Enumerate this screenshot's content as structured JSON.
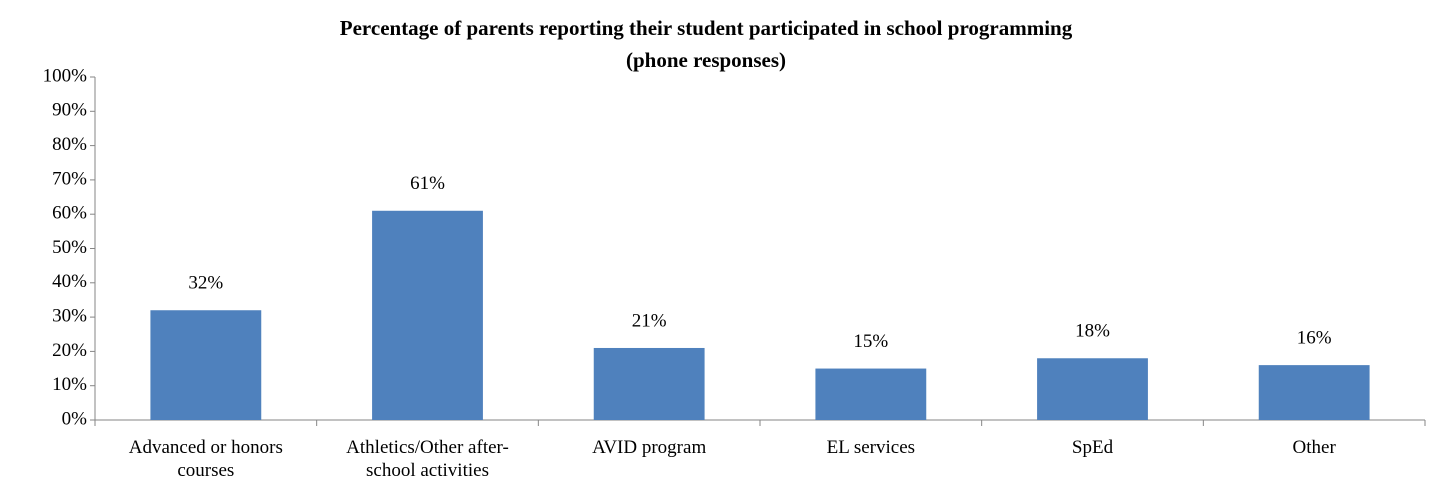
{
  "chart_data": {
    "type": "bar",
    "title": [
      "Percentage of parents reporting their student participated in school programming",
      "(phone responses)"
    ],
    "categories": [
      "Advanced or honors courses",
      "Athletics/Other after-school activities",
      "AVID program",
      "EL services",
      "SpEd",
      "Other"
    ],
    "values": [
      32,
      61,
      21,
      15,
      18,
      16
    ],
    "value_labels": [
      "32%",
      "61%",
      "21%",
      "15%",
      "18%",
      "16%"
    ],
    "color": "#4f81bd",
    "ylim": [
      0,
      100
    ],
    "yticks": [
      {
        "value": 0,
        "label": "0%"
      },
      {
        "value": 10,
        "label": "10%"
      },
      {
        "value": 20,
        "label": "20%"
      },
      {
        "value": 30,
        "label": "30%"
      },
      {
        "value": 40,
        "label": "40%"
      },
      {
        "value": 50,
        "label": "50%"
      },
      {
        "value": 60,
        "label": "60%"
      },
      {
        "value": 70,
        "label": "70%"
      },
      {
        "value": 80,
        "label": "80%"
      },
      {
        "value": 90,
        "label": "90%"
      },
      {
        "value": 100,
        "label": "100%"
      }
    ],
    "grid": false
  }
}
